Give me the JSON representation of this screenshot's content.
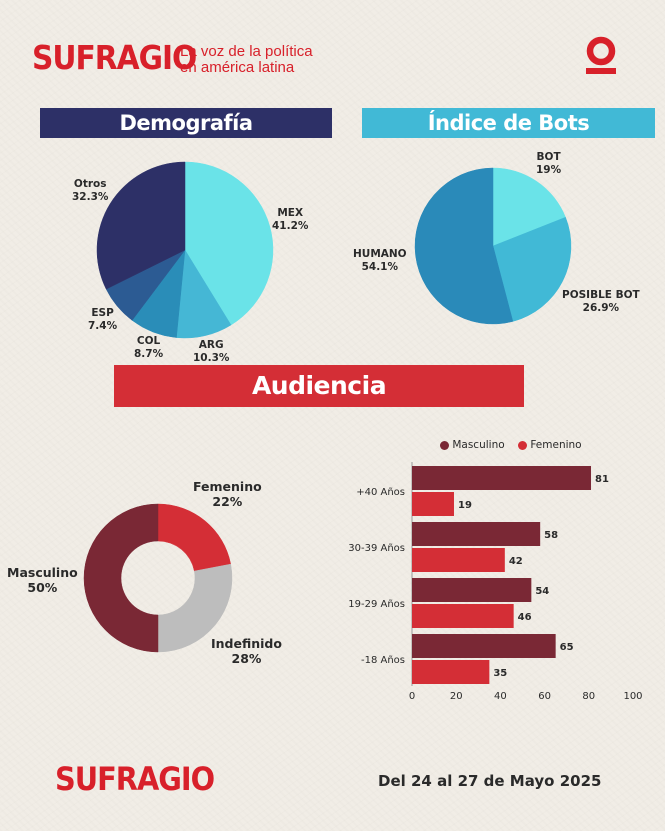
{
  "header": {
    "logo": "SUFRAGIO",
    "tagline_line1": "La voz de la política",
    "tagline_line2": "en américa latina",
    "corner_logo": "O"
  },
  "footer": {
    "logo": "SUFRAGIO",
    "date_range": "Del 24 al 27 de Mayo 2025"
  },
  "colors": {
    "brand_red": "#d8202a",
    "navy": "#2d3067",
    "sky": "#41b9d6",
    "maroon": "#7a2835",
    "bar_red": "#d42e36",
    "gray": "#bdbdbd"
  },
  "chart_data": [
    {
      "type": "pie",
      "title": "Demografía",
      "slices": [
        {
          "label": "MEX",
          "value": 41.2,
          "display": "41.2%",
          "color": "#6ae3e8"
        },
        {
          "label": "ARG",
          "value": 10.3,
          "display": "10.3%",
          "color": "#45b7d5"
        },
        {
          "label": "COL",
          "value": 8.7,
          "display": "8.7%",
          "color": "#2a8db8"
        },
        {
          "label": "ESP",
          "value": 7.4,
          "display": "7.4%",
          "color": "#2c5b93"
        },
        {
          "label": "Otros",
          "value": 32.3,
          "display": "32.3%",
          "color": "#2d3067"
        }
      ]
    },
    {
      "type": "pie",
      "title": "Índice de Bots",
      "slices": [
        {
          "label": "BOT",
          "value": 19,
          "display": "19%",
          "color": "#6ae3e8"
        },
        {
          "label": "POSIBLE BOT",
          "value": 26.9,
          "display": "26.9%",
          "color": "#41b9d6"
        },
        {
          "label": "HUMANO",
          "value": 54.1,
          "display": "54.1%",
          "color": "#2a8ab9"
        }
      ]
    },
    {
      "type": "pie",
      "subtype": "donut",
      "section_title": "Audiencia",
      "slices": [
        {
          "label": "Femenino",
          "value": 22,
          "display": "22%",
          "color": "#d42e36"
        },
        {
          "label": "Indefinido",
          "value": 28,
          "display": "28%",
          "color": "#bdbdbd"
        },
        {
          "label": "Masculino",
          "value": 50,
          "display": "50%",
          "color": "#7a2835"
        }
      ]
    },
    {
      "type": "bar",
      "orientation": "horizontal",
      "categories": [
        "+40 Años",
        "30-39 Años",
        "19-29 Años",
        "-18 Años"
      ],
      "series": [
        {
          "name": "Masculino",
          "values": [
            81,
            58,
            54,
            65
          ],
          "labels": [
            "81",
            "58",
            "54",
            "65"
          ],
          "color": "#7a2835"
        },
        {
          "name": "Femenino",
          "values": [
            19,
            42,
            46,
            35
          ],
          "labels": [
            "19",
            "42",
            "46",
            "35"
          ],
          "color": "#d42e36"
        }
      ],
      "xlim": [
        0,
        100
      ],
      "xticks": [
        "0",
        "20",
        "40",
        "60",
        "80",
        "100"
      ],
      "legend_position": "top"
    }
  ]
}
